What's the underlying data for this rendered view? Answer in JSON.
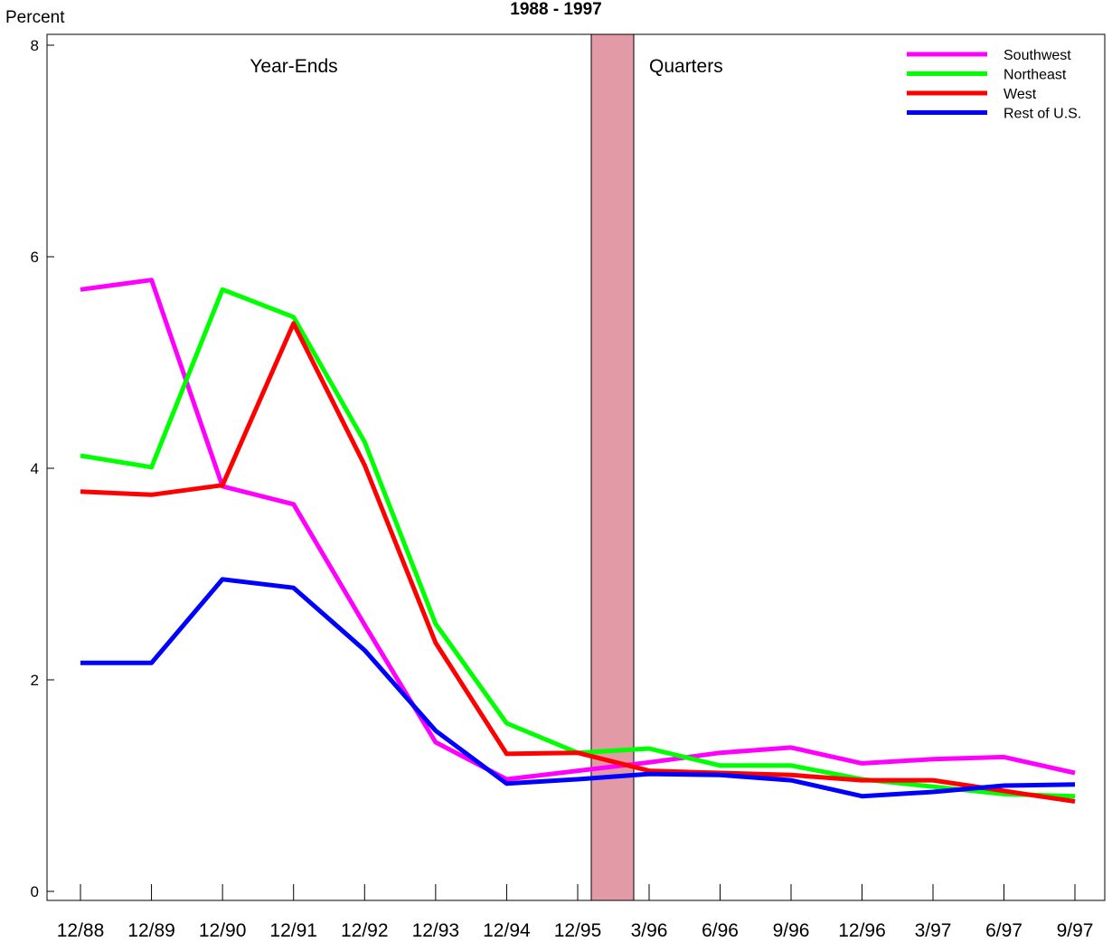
{
  "chart_data": {
    "type": "line",
    "title": "1988 - 1997",
    "ylabel": "Percent",
    "ylim": [
      0,
      8
    ],
    "yticks": [
      "0",
      "2",
      "4",
      "6",
      "8"
    ],
    "categories": [
      "12/88",
      "12/89",
      "12/90",
      "12/91",
      "12/92",
      "12/93",
      "12/94",
      "12/95",
      "3/96",
      "6/96",
      "9/96",
      "12/96",
      "3/97",
      "6/97",
      "9/97"
    ],
    "region_labels": {
      "left": "Year-Ends",
      "right": "Quarters"
    },
    "divider_color": "#e29aa7",
    "legend_position": "top-right",
    "series": [
      {
        "name": "Southwest",
        "color": "#ff00ff",
        "values": [
          5.69,
          5.78,
          3.83,
          3.66,
          2.52,
          1.41,
          1.06,
          1.14,
          1.22,
          1.31,
          1.36,
          1.21,
          1.25,
          1.27,
          1.12
        ]
      },
      {
        "name": "Northeast",
        "color": "#00ff00",
        "values": [
          4.12,
          4.01,
          5.69,
          5.43,
          4.25,
          2.53,
          1.59,
          1.31,
          1.35,
          1.19,
          1.19,
          1.06,
          0.99,
          0.92,
          0.9
        ]
      },
      {
        "name": "West",
        "color": "#ff0000",
        "values": [
          3.78,
          3.75,
          3.84,
          5.37,
          4.03,
          2.35,
          1.3,
          1.31,
          1.14,
          1.12,
          1.1,
          1.05,
          1.05,
          0.95,
          0.85
        ]
      },
      {
        "name": "Rest of U.S.",
        "color": "#0000ff",
        "values": [
          2.16,
          2.16,
          2.95,
          2.87,
          2.28,
          1.52,
          1.02,
          1.06,
          1.11,
          1.1,
          1.05,
          0.9,
          0.94,
          1.0,
          1.01
        ]
      }
    ]
  }
}
